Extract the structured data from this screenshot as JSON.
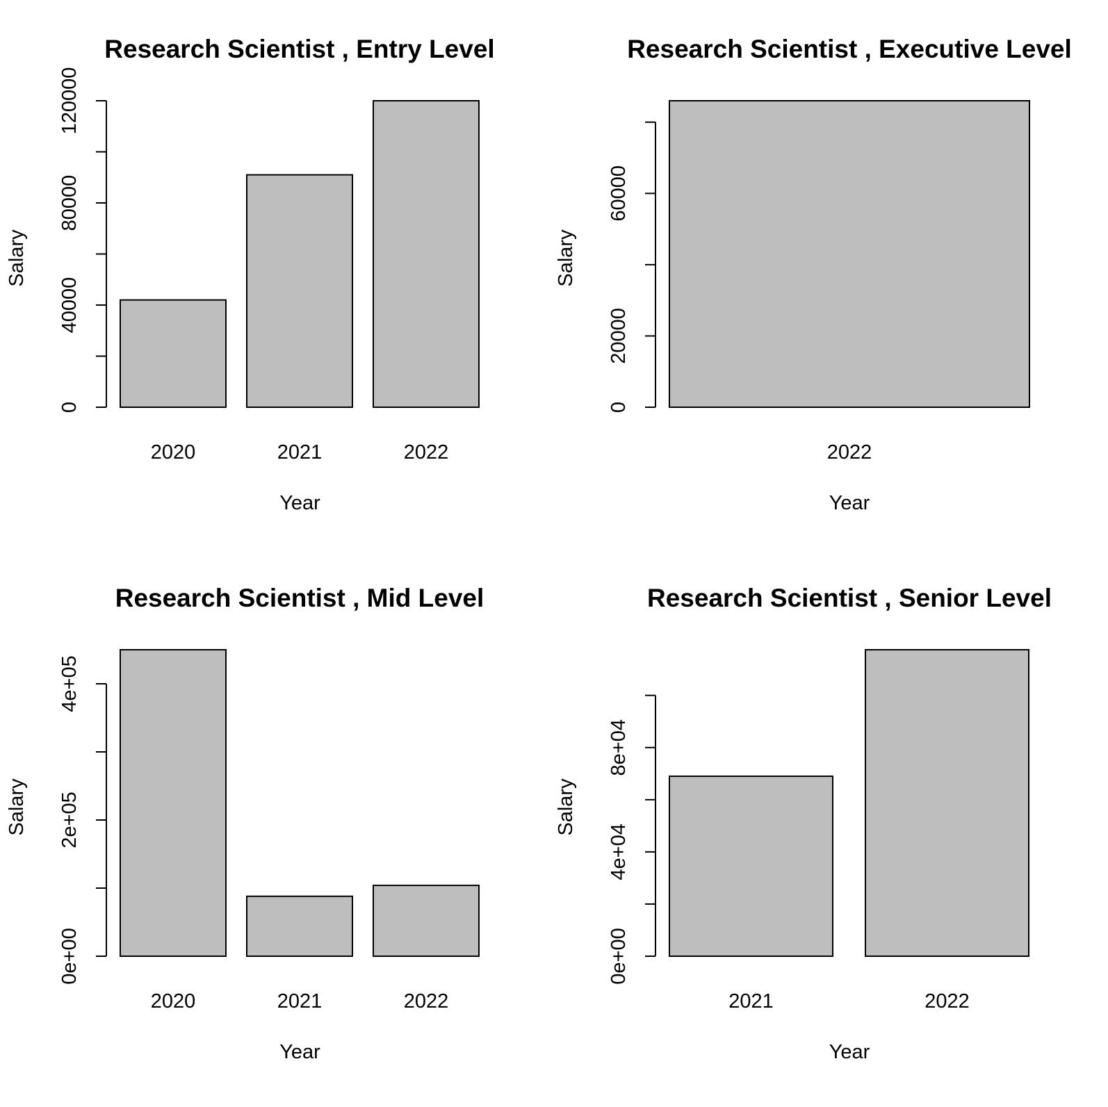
{
  "chart_data": [
    {
      "type": "bar",
      "title": "Research Scientist ,  Entry Level",
      "xlabel": "Year",
      "ylabel": "Salary",
      "categories": [
        "2020",
        "2021",
        "2022"
      ],
      "values": [
        42000,
        91000,
        120000
      ],
      "yticks": [
        0,
        20000,
        40000,
        60000,
        80000,
        100000,
        120000
      ],
      "ytick_labels": [
        "0",
        "",
        "40000",
        "",
        "80000",
        "",
        "120000"
      ],
      "ylim": [
        0,
        120000
      ],
      "grid": false
    },
    {
      "type": "bar",
      "title": "Research Scientist ,  Executive Level",
      "xlabel": "Year",
      "ylabel": "Salary",
      "categories": [
        "2022"
      ],
      "values": [
        86000
      ],
      "yticks": [
        0,
        20000,
        40000,
        60000,
        80000
      ],
      "ytick_labels": [
        "0",
        "20000",
        "",
        "60000",
        ""
      ],
      "ylim": [
        0,
        86000
      ],
      "grid": false
    },
    {
      "type": "bar",
      "title": "Research Scientist ,  Mid Level",
      "xlabel": "Year",
      "ylabel": "Salary",
      "categories": [
        "2020",
        "2021",
        "2022"
      ],
      "values": [
        450000,
        88000,
        104000
      ],
      "yticks": [
        0,
        100000,
        200000,
        300000,
        400000
      ],
      "ytick_labels": [
        "0e+00",
        "",
        "2e+05",
        "",
        "4e+05"
      ],
      "ylim": [
        0,
        450000
      ],
      "grid": false
    },
    {
      "type": "bar",
      "title": "Research Scientist ,  Senior Level",
      "xlabel": "Year",
      "ylabel": "Salary",
      "categories": [
        "2021",
        "2022"
      ],
      "values": [
        69000,
        117500
      ],
      "yticks": [
        0,
        20000,
        40000,
        60000,
        80000,
        100000
      ],
      "ytick_labels": [
        "0e+00",
        "",
        "4e+04",
        "",
        "8e+04",
        ""
      ],
      "ylim": [
        0,
        117500
      ],
      "grid": false
    }
  ]
}
